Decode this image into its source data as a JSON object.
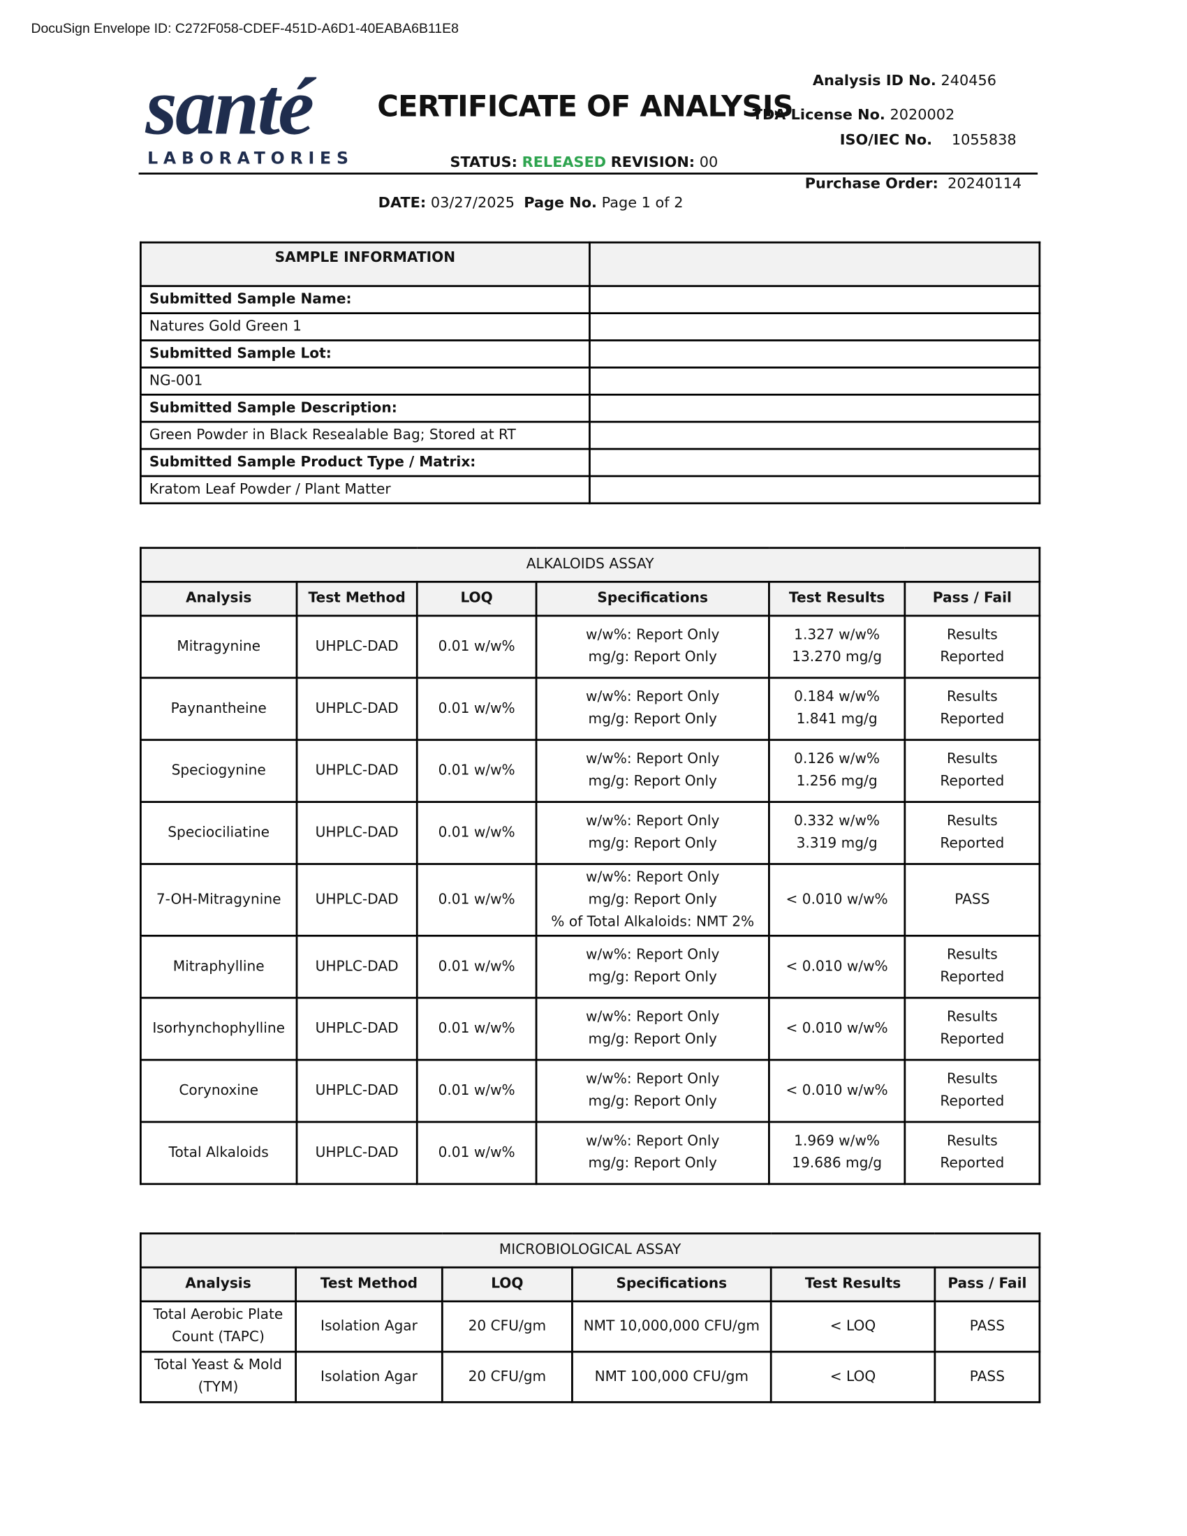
{
  "envelope": "DocuSign Envelope ID: C272F058-CDEF-451D-A6D1-40EABA6B11E8",
  "logo": {
    "name": "santé",
    "sub": "LABORATORIES"
  },
  "header": {
    "title": "CERTIFICATE OF ANALYSIS",
    "analysis_id": {
      "label": "Analysis ID No.",
      "value": "240456"
    },
    "tda": {
      "label": "TDA License No.",
      "value": "2020002"
    },
    "iso": {
      "label": "ISO/IEC No.",
      "value": "1055838"
    },
    "status": {
      "label": "STATUS:",
      "value": "RELEASED"
    },
    "revision": {
      "label": "REVISION:",
      "value": "00"
    },
    "purchase_order": {
      "label": "Purchase Order:",
      "value": "20240114"
    },
    "date": {
      "label": "DATE:",
      "value": "03/27/2025"
    },
    "page": {
      "label": "Page No.",
      "value": "Page 1 of 2"
    }
  },
  "sample_info": {
    "title": "SAMPLE INFORMATION",
    "rows": [
      {
        "label": "Submitted Sample Name:",
        "value": "Natures Gold Green 1"
      },
      {
        "label": "Submitted Sample Lot:",
        "value": "NG-001"
      },
      {
        "label": "Submitted Sample Description:",
        "value": "Green Powder in Black Resealable Bag; Stored at RT"
      },
      {
        "label": "Submitted Sample Product Type / Matrix:",
        "value": "Kratom Leaf Powder / Plant Matter"
      }
    ]
  },
  "alkaloids": {
    "title": "ALKALOIDS ASSAY",
    "columns": [
      "Analysis",
      "Test Method",
      "LOQ",
      "Specifications",
      "Test Results",
      "Pass / Fail"
    ],
    "rows": [
      [
        "Mitragynine",
        "UHPLC-DAD",
        "0.01 w/w%",
        [
          "w/w%: Report Only",
          "mg/g: Report Only"
        ],
        [
          "1.327 w/w%",
          "13.270 mg/g"
        ],
        [
          "Results",
          "Reported"
        ]
      ],
      [
        "Paynantheine",
        "UHPLC-DAD",
        "0.01 w/w%",
        [
          "w/w%: Report Only",
          "mg/g: Report Only"
        ],
        [
          "0.184 w/w%",
          "1.841 mg/g"
        ],
        [
          "Results",
          "Reported"
        ]
      ],
      [
        "Speciogynine",
        "UHPLC-DAD",
        "0.01 w/w%",
        [
          "w/w%: Report Only",
          "mg/g: Report Only"
        ],
        [
          "0.126 w/w%",
          "1.256 mg/g"
        ],
        [
          "Results",
          "Reported"
        ]
      ],
      [
        "Speciociliatine",
        "UHPLC-DAD",
        "0.01 w/w%",
        [
          "w/w%: Report Only",
          "mg/g: Report Only"
        ],
        [
          "0.332 w/w%",
          "3.319 mg/g"
        ],
        [
          "Results",
          "Reported"
        ]
      ],
      [
        "7-OH-Mitragynine",
        "UHPLC-DAD",
        "0.01 w/w%",
        [
          "w/w%: Report Only",
          "mg/g: Report Only",
          "% of Total Alkaloids: NMT 2%"
        ],
        "< 0.010 w/w%",
        "PASS"
      ],
      [
        "Mitraphylline",
        "UHPLC-DAD",
        "0.01 w/w%",
        [
          "w/w%: Report Only",
          "mg/g: Report Only"
        ],
        "< 0.010 w/w%",
        [
          "Results",
          "Reported"
        ]
      ],
      [
        "Isorhynchophylline",
        "UHPLC-DAD",
        "0.01 w/w%",
        [
          "w/w%: Report Only",
          "mg/g: Report Only"
        ],
        "< 0.010 w/w%",
        [
          "Results",
          "Reported"
        ]
      ],
      [
        "Corynoxine",
        "UHPLC-DAD",
        "0.01 w/w%",
        [
          "w/w%: Report Only",
          "mg/g: Report Only"
        ],
        "< 0.010 w/w%",
        [
          "Results",
          "Reported"
        ]
      ],
      [
        "Total Alkaloids",
        "UHPLC-DAD",
        "0.01 w/w%",
        [
          "w/w%: Report Only",
          "mg/g: Report Only"
        ],
        [
          "1.969 w/w%",
          "19.686 mg/g"
        ],
        [
          "Results",
          "Reported"
        ]
      ]
    ]
  },
  "microbiological": {
    "title": "MICROBIOLOGICAL ASSAY",
    "columns": [
      "Analysis",
      "Test Method",
      "LOQ",
      "Specifications",
      "Test Results",
      "Pass / Fail"
    ],
    "rows": [
      [
        [
          "Total Aerobic Plate",
          "Count (TAPC)"
        ],
        "Isolation Agar",
        "20 CFU/gm",
        "NMT 10,000,000 CFU/gm",
        "< LOQ",
        "PASS"
      ],
      [
        [
          "Total Yeast & Mold",
          "(TYM)"
        ],
        "Isolation Agar",
        "20 CFU/gm",
        "NMT 100,000 CFU/gm",
        "< LOQ",
        "PASS"
      ]
    ]
  }
}
